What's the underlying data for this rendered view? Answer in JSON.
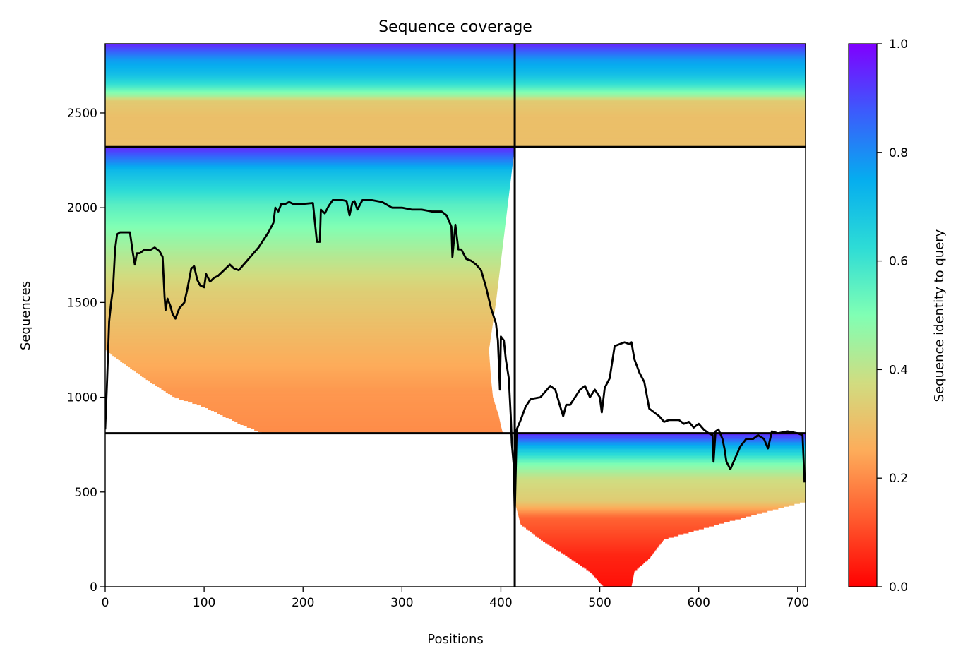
{
  "chart_data": {
    "type": "heatmap",
    "title": "Sequence coverage",
    "xlabel": "Positions",
    "ylabel": "Sequences",
    "xlim": [
      0,
      708
    ],
    "ylim": [
      0,
      2865
    ],
    "xticks": [
      0,
      100,
      200,
      300,
      400,
      500,
      600,
      700
    ],
    "yticks": [
      0,
      500,
      1000,
      1500,
      2000,
      2500
    ],
    "colorbar": {
      "label": "Sequence identity to query",
      "range": [
        0.0,
        1.0
      ],
      "ticks": [
        "0.0",
        "0.2",
        "0.4",
        "0.6",
        "0.8",
        "1.0"
      ],
      "colormap": "rainbow_r"
    },
    "separators": {
      "x": 414,
      "y": [
        810,
        2320
      ]
    },
    "blocks": [
      {
        "name": "block-top-left",
        "x": [
          0,
          414
        ],
        "y": [
          2320,
          2865
        ],
        "identity_profile": [
          [
            0.3,
            0.3
          ],
          [
            0.45,
            0.33
          ],
          [
            0.5,
            0.45
          ],
          [
            0.6,
            0.6
          ],
          [
            0.7,
            0.7
          ],
          [
            0.85,
            0.78
          ],
          [
            1.0,
            0.95
          ]
        ],
        "taper": []
      },
      {
        "name": "block-top-right",
        "x": [
          414,
          708
        ],
        "y": [
          2320,
          2865
        ],
        "identity_profile": [
          [
            0.3,
            0.3
          ],
          [
            0.45,
            0.33
          ],
          [
            0.5,
            0.45
          ],
          [
            0.6,
            0.6
          ],
          [
            0.7,
            0.7
          ],
          [
            0.85,
            0.78
          ],
          [
            1.0,
            0.95
          ]
        ],
        "taper": []
      },
      {
        "name": "block-middle-left",
        "x": [
          0,
          414
        ],
        "y": [
          810,
          2320
        ],
        "identity_profile": [
          [
            0.0,
            0.2
          ],
          [
            0.15,
            0.22
          ],
          [
            0.3,
            0.27
          ],
          [
            0.5,
            0.34
          ],
          [
            0.62,
            0.42
          ],
          [
            0.8,
            0.56
          ],
          [
            0.92,
            0.72
          ],
          [
            1.0,
            0.95
          ]
        ],
        "taper": [
          [
            810,
            160,
            402
          ],
          [
            850,
            140,
            400
          ],
          [
            900,
            120,
            398
          ],
          [
            950,
            100,
            395
          ],
          [
            1000,
            70,
            392
          ],
          [
            1100,
            40,
            390
          ],
          [
            1250,
            0,
            388
          ],
          [
            1500,
            0,
            395
          ],
          [
            2320,
            0,
            414
          ]
        ]
      },
      {
        "name": "block-bottom-right",
        "x": [
          414,
          708
        ],
        "y": [
          0,
          810
        ],
        "identity_profile": [
          [
            0.0,
            0.02
          ],
          [
            0.2,
            0.05
          ],
          [
            0.45,
            0.14
          ],
          [
            0.56,
            0.33
          ],
          [
            0.7,
            0.38
          ],
          [
            0.8,
            0.5
          ],
          [
            0.9,
            0.7
          ],
          [
            1.0,
            0.95
          ]
        ],
        "taper": [
          [
            0,
            504,
            532
          ],
          [
            80,
            490,
            535
          ],
          [
            150,
            470,
            550
          ],
          [
            250,
            440,
            565
          ],
          [
            330,
            420,
            620
          ],
          [
            450,
            414,
            708
          ],
          [
            810,
            414,
            708
          ]
        ]
      }
    ],
    "coverage_line": {
      "name": "coverage",
      "color": "#000000",
      "points": [
        [
          0,
          830
        ],
        [
          2,
          1100
        ],
        [
          4,
          1400
        ],
        [
          6,
          1500
        ],
        [
          8,
          1580
        ],
        [
          10,
          1780
        ],
        [
          12,
          1860
        ],
        [
          15,
          1870
        ],
        [
          25,
          1870
        ],
        [
          28,
          1760
        ],
        [
          30,
          1700
        ],
        [
          32,
          1760
        ],
        [
          35,
          1760
        ],
        [
          40,
          1780
        ],
        [
          45,
          1775
        ],
        [
          50,
          1790
        ],
        [
          55,
          1770
        ],
        [
          58,
          1740
        ],
        [
          60,
          1530
        ],
        [
          61,
          1460
        ],
        [
          63,
          1520
        ],
        [
          66,
          1480
        ],
        [
          68,
          1440
        ],
        [
          71,
          1415
        ],
        [
          75,
          1470
        ],
        [
          80,
          1500
        ],
        [
          83,
          1570
        ],
        [
          87,
          1680
        ],
        [
          90,
          1690
        ],
        [
          93,
          1620
        ],
        [
          96,
          1590
        ],
        [
          100,
          1580
        ],
        [
          102,
          1650
        ],
        [
          106,
          1610
        ],
        [
          110,
          1630
        ],
        [
          114,
          1640
        ],
        [
          118,
          1660
        ],
        [
          122,
          1680
        ],
        [
          126,
          1700
        ],
        [
          130,
          1680
        ],
        [
          135,
          1670
        ],
        [
          140,
          1700
        ],
        [
          145,
          1730
        ],
        [
          150,
          1760
        ],
        [
          155,
          1790
        ],
        [
          160,
          1830
        ],
        [
          165,
          1870
        ],
        [
          170,
          1920
        ],
        [
          172,
          2000
        ],
        [
          175,
          1980
        ],
        [
          178,
          2020
        ],
        [
          182,
          2020
        ],
        [
          186,
          2030
        ],
        [
          190,
          2020
        ],
        [
          200,
          2020
        ],
        [
          210,
          2025
        ],
        [
          214,
          1820
        ],
        [
          217,
          1820
        ],
        [
          218,
          1990
        ],
        [
          222,
          1970
        ],
        [
          226,
          2010
        ],
        [
          230,
          2040
        ],
        [
          240,
          2040
        ],
        [
          244,
          2035
        ],
        [
          247,
          1960
        ],
        [
          250,
          2030
        ],
        [
          252,
          2035
        ],
        [
          255,
          1990
        ],
        [
          260,
          2040
        ],
        [
          270,
          2040
        ],
        [
          280,
          2030
        ],
        [
          290,
          2000
        ],
        [
          300,
          2000
        ],
        [
          310,
          1990
        ],
        [
          320,
          1990
        ],
        [
          330,
          1980
        ],
        [
          340,
          1980
        ],
        [
          345,
          1960
        ],
        [
          350,
          1900
        ],
        [
          351,
          1740
        ],
        [
          354,
          1910
        ],
        [
          357,
          1780
        ],
        [
          360,
          1780
        ],
        [
          362,
          1760
        ],
        [
          365,
          1730
        ],
        [
          370,
          1720
        ],
        [
          375,
          1700
        ],
        [
          380,
          1670
        ],
        [
          385,
          1580
        ],
        [
          390,
          1470
        ],
        [
          395,
          1390
        ],
        [
          397,
          1300
        ],
        [
          399,
          1040
        ],
        [
          400,
          1320
        ],
        [
          403,
          1300
        ],
        [
          405,
          1200
        ],
        [
          408,
          1100
        ],
        [
          410,
          900
        ],
        [
          411,
          760
        ],
        [
          413,
          640
        ],
        [
          414,
          380
        ],
        [
          416,
          830
        ],
        [
          420,
          880
        ],
        [
          425,
          950
        ],
        [
          430,
          990
        ],
        [
          440,
          1000
        ],
        [
          450,
          1060
        ],
        [
          455,
          1040
        ],
        [
          460,
          950
        ],
        [
          463,
          900
        ],
        [
          466,
          960
        ],
        [
          470,
          960
        ],
        [
          475,
          1000
        ],
        [
          480,
          1040
        ],
        [
          485,
          1060
        ],
        [
          490,
          1000
        ],
        [
          495,
          1040
        ],
        [
          500,
          1000
        ],
        [
          502,
          920
        ],
        [
          505,
          1050
        ],
        [
          510,
          1100
        ],
        [
          515,
          1270
        ],
        [
          520,
          1280
        ],
        [
          525,
          1290
        ],
        [
          530,
          1280
        ],
        [
          532,
          1290
        ],
        [
          535,
          1200
        ],
        [
          540,
          1130
        ],
        [
          545,
          1080
        ],
        [
          550,
          940
        ],
        [
          555,
          920
        ],
        [
          560,
          900
        ],
        [
          565,
          870
        ],
        [
          570,
          880
        ],
        [
          580,
          880
        ],
        [
          585,
          860
        ],
        [
          590,
          870
        ],
        [
          595,
          840
        ],
        [
          600,
          860
        ],
        [
          605,
          830
        ],
        [
          610,
          810
        ],
        [
          614,
          800
        ],
        [
          615,
          660
        ],
        [
          617,
          820
        ],
        [
          620,
          830
        ],
        [
          624,
          780
        ],
        [
          626,
          730
        ],
        [
          628,
          660
        ],
        [
          632,
          620
        ],
        [
          637,
          680
        ],
        [
          642,
          740
        ],
        [
          648,
          780
        ],
        [
          655,
          780
        ],
        [
          660,
          800
        ],
        [
          666,
          780
        ],
        [
          670,
          730
        ],
        [
          674,
          820
        ],
        [
          680,
          810
        ],
        [
          690,
          820
        ],
        [
          700,
          810
        ],
        [
          705,
          800
        ],
        [
          707,
          550
        ]
      ]
    }
  }
}
